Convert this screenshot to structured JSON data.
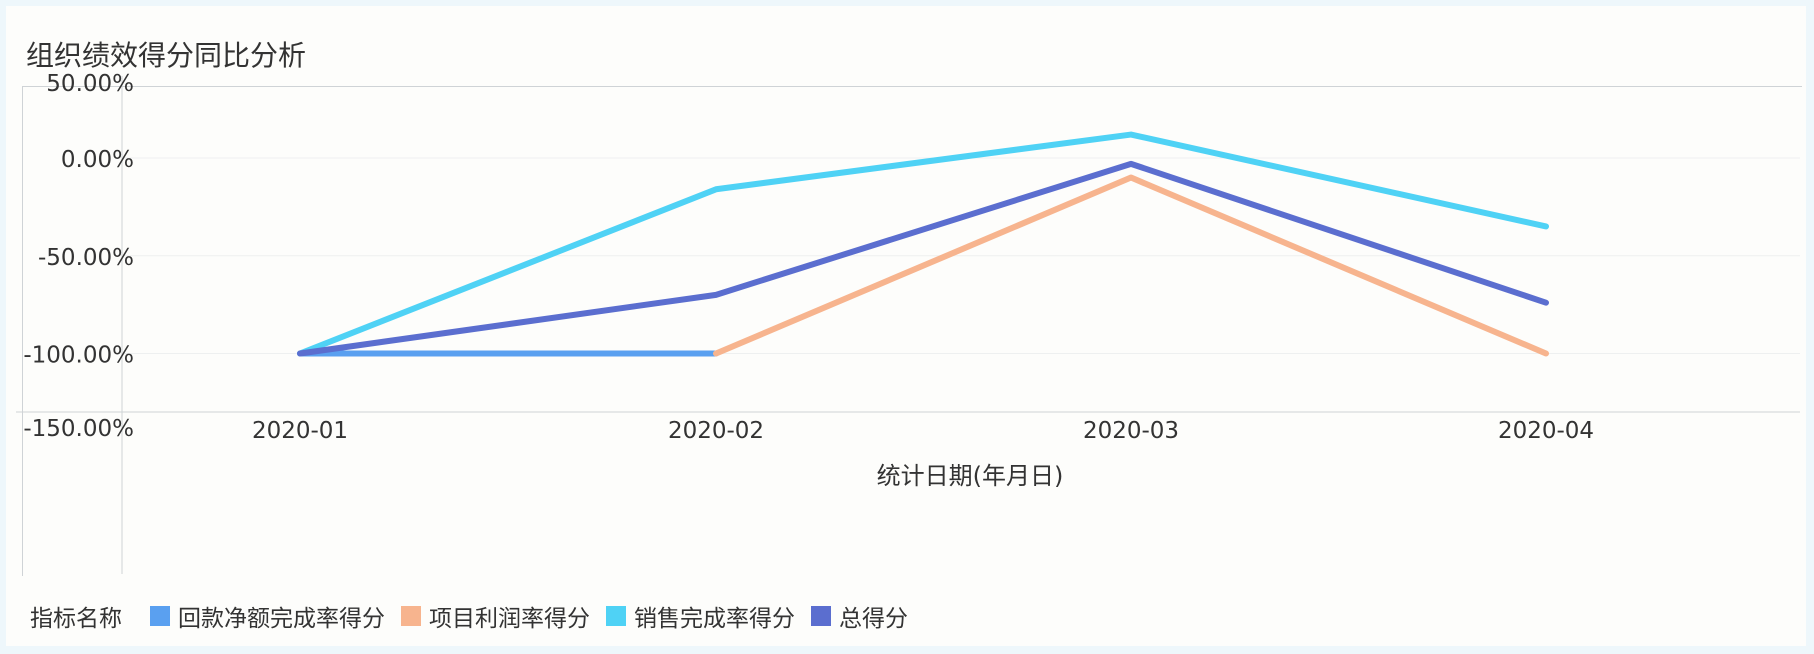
{
  "title": "组织绩效得分同比分析",
  "chart_data": {
    "type": "line",
    "title": "组织绩效得分同比分析",
    "xlabel": "统计日期(年月日)",
    "ylabel": "",
    "categories": [
      "2020-01",
      "2020-02",
      "2020-03",
      "2020-04"
    ],
    "y_ticks": [
      "50.00%",
      "0.00%",
      "-50.00%",
      "-100.00%",
      "-150.00%"
    ],
    "y_tick_values": [
      50,
      0,
      -50,
      -100,
      -150
    ],
    "legend_title": "指标名称",
    "legend_position": "bottom-left",
    "series": [
      {
        "name": "回款净额完成率得分",
        "color": "#5aa0f0",
        "values": [
          -100,
          -100,
          null,
          null
        ]
      },
      {
        "name": "项目利润率得分",
        "color": "#f7b48e",
        "values": [
          null,
          -100,
          -10,
          -100
        ]
      },
      {
        "name": "销售完成率得分",
        "color": "#4fd2f5",
        "values": [
          -100,
          -16,
          12,
          -35
        ]
      },
      {
        "name": "总得分",
        "color": "#5b6ecf",
        "values": [
          -100,
          -70,
          -3,
          -74
        ]
      }
    ]
  }
}
